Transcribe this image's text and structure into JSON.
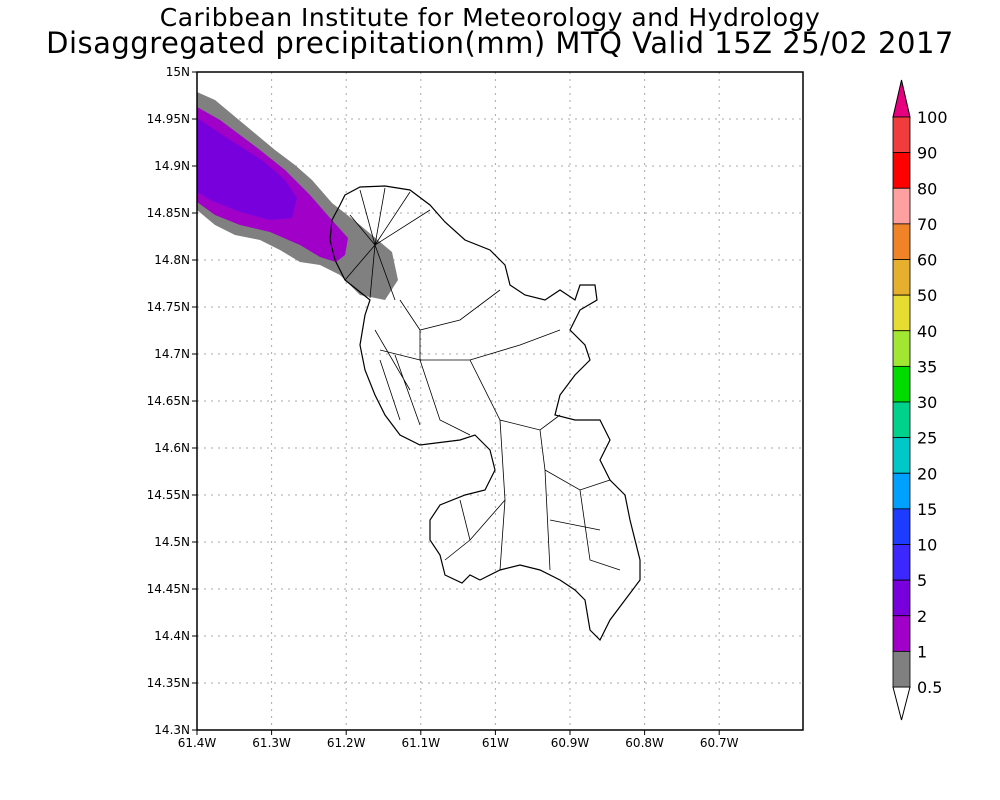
{
  "title": {
    "line1": "Caribbean Institute for Meteorology and Hydrology",
    "line2": "Disaggregated precipitation(mm) MTQ Valid 15Z 25/02 2017"
  },
  "map": {
    "lat_ticks": [
      "15N",
      "14.95N",
      "14.9N",
      "14.85N",
      "14.8N",
      "14.75N",
      "14.7N",
      "14.65N",
      "14.6N",
      "14.55N",
      "14.5N",
      "14.45N",
      "14.4N",
      "14.35N",
      "14.3N"
    ],
    "lon_ticks": [
      "61.4W",
      "61.3W",
      "61.2W",
      "61.1W",
      "61W",
      "60.9W",
      "60.8W",
      "60.7W"
    ],
    "lat_range": [
      14.3,
      15.0
    ],
    "lon_range": [
      -61.4,
      -60.59
    ],
    "region": "Martinique"
  },
  "colorbar": {
    "labels": [
      "100",
      "90",
      "80",
      "70",
      "60",
      "50",
      "40",
      "35",
      "30",
      "25",
      "20",
      "15",
      "10",
      "5",
      "2",
      "1",
      "0.5"
    ],
    "colors": [
      "#f03c3c",
      "#ff0000",
      "#ffa0a0",
      "#f08228",
      "#e6af2d",
      "#e6dc32",
      "#a0e632",
      "#00dc00",
      "#00d28c",
      "#00c8c8",
      "#00a0ff",
      "#1e3cff",
      "#3c28ff",
      "#7800dc",
      "#a000c8",
      "#808080"
    ],
    "top_arrow_color": "#e6007f",
    "bottom_arrow_color": "#ffffff"
  }
}
